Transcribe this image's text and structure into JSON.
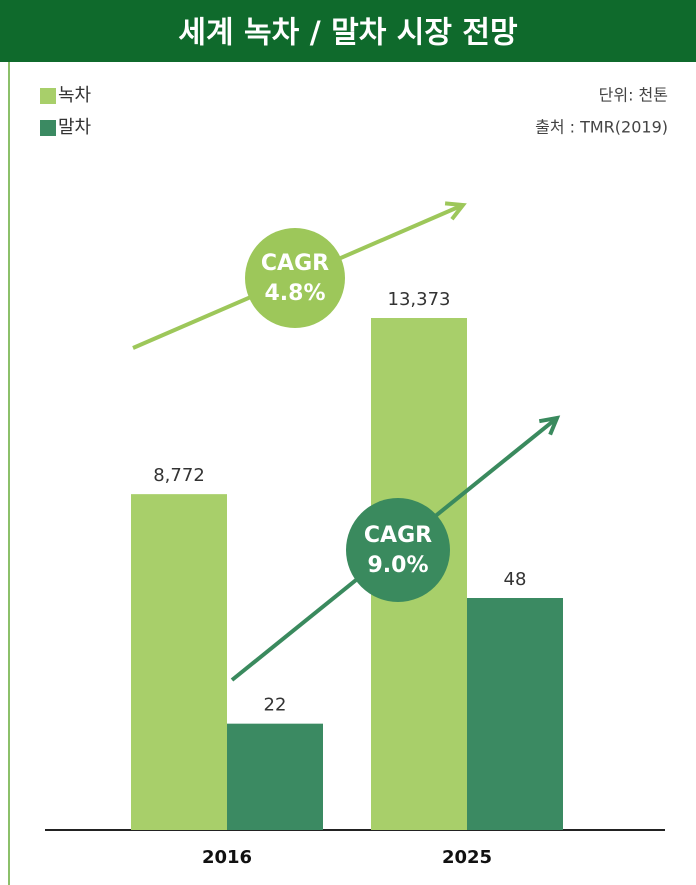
{
  "chart_data": {
    "type": "bar",
    "title": "세계 녹차 / 말차 시장 전망",
    "unit": "단위: 천톤",
    "source": "출처 : TMR(2019)",
    "categories": [
      "2016",
      "2025"
    ],
    "series": [
      {
        "name": "녹차",
        "color": "#a8cf6a",
        "values": [
          8772,
          13373
        ],
        "value_labels": [
          "8,772",
          "13,373"
        ]
      },
      {
        "name": "말차",
        "color": "#3b8a62",
        "values": [
          22,
          48
        ]
      }
    ],
    "annotations": [
      {
        "label": "CAGR",
        "text": "4.8%",
        "color": "#9dc75a"
      },
      {
        "label": "CAGR",
        "text": "9.0%",
        "color": "#3a8a5e"
      }
    ]
  }
}
